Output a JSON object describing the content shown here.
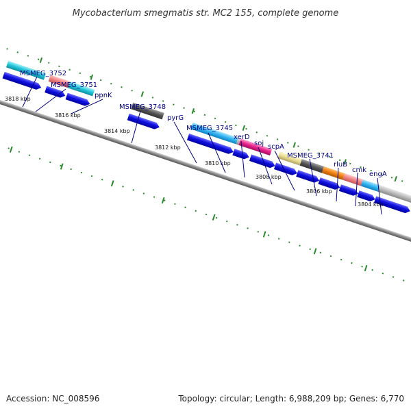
{
  "title": "Mycobacterium smegmatis str. MC2 155, complete genome",
  "footer": {
    "accession": "Accession: NC_008596",
    "summary": "Topology: circular; Length: 6,988,209 bp; Genes: 6,770"
  },
  "kbp_labels": [
    "3818 kbp",
    "3816 kbp",
    "3814 kbp",
    "3812 kbp",
    "3810 kbp",
    "3808 kbp",
    "3806 kbp",
    "3804 kbp"
  ],
  "genes": [
    "MSMEG_3752",
    "MSMEG_3751",
    "ppnK",
    "MSMEG_3748",
    "pyrG",
    "MSMEG_3745",
    "xerD",
    "soj",
    "scpA",
    "MSMEG_3741",
    "rluB",
    "cmk",
    "engA"
  ],
  "colors": {
    "cds_arrow": "#1010e0",
    "backbone": "#888888",
    "tick": "#2a8a2a",
    "label": "#000080",
    "cyan": "#22c4d8",
    "salmon": "#f08080",
    "dark_gray": "#555555",
    "magenta": "#e8208a",
    "khaki": "#e8dc90",
    "orange": "#f08010",
    "light_gray": "#b8b8b8"
  }
}
